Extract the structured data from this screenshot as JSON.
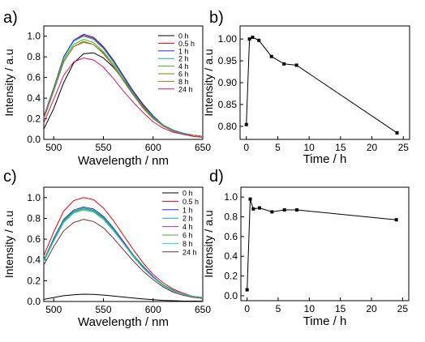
{
  "figure": {
    "panels": [
      {
        "label": "a)"
      },
      {
        "label": "b)"
      },
      {
        "label": "c)"
      },
      {
        "label": "d)"
      }
    ]
  },
  "chart_data": [
    {
      "panel": "a)",
      "type": "line",
      "xlabel": "Wavelength / nm",
      "ylabel": "Intensity / a.u",
      "xlim": [
        490,
        650
      ],
      "ylim": [
        0.0,
        1.1
      ],
      "xticks": [
        500,
        550,
        600,
        650
      ],
      "yticks": [
        0.0,
        0.2,
        0.4,
        0.6,
        0.8,
        1.0
      ],
      "legend_position": "top-right",
      "x": [
        490,
        500,
        510,
        520,
        530,
        540,
        550,
        560,
        570,
        580,
        590,
        600,
        610,
        620,
        630,
        640,
        650
      ],
      "series": [
        {
          "name": "0 h",
          "color": "#000000",
          "values": [
            0.1,
            0.3,
            0.55,
            0.74,
            0.83,
            0.84,
            0.79,
            0.7,
            0.58,
            0.45,
            0.33,
            0.22,
            0.14,
            0.09,
            0.06,
            0.04,
            0.03
          ]
        },
        {
          "name": "0.5 h",
          "color": "#e8000b",
          "values": [
            0.22,
            0.5,
            0.8,
            0.96,
            1.01,
            0.98,
            0.89,
            0.76,
            0.61,
            0.46,
            0.33,
            0.22,
            0.14,
            0.09,
            0.06,
            0.04,
            0.03
          ]
        },
        {
          "name": "1 h",
          "color": "#2c2ee8",
          "values": [
            0.22,
            0.5,
            0.8,
            0.96,
            1.02,
            0.99,
            0.9,
            0.77,
            0.62,
            0.47,
            0.34,
            0.23,
            0.14,
            0.09,
            0.06,
            0.04,
            0.03
          ]
        },
        {
          "name": "2 h",
          "color": "#1aa6a6",
          "values": [
            0.21,
            0.49,
            0.79,
            0.95,
            1.0,
            0.97,
            0.88,
            0.75,
            0.6,
            0.45,
            0.32,
            0.22,
            0.14,
            0.09,
            0.06,
            0.04,
            0.03
          ]
        },
        {
          "name": "4 h",
          "color": "#3cb031",
          "values": [
            0.21,
            0.48,
            0.77,
            0.92,
            0.97,
            0.94,
            0.85,
            0.73,
            0.58,
            0.44,
            0.31,
            0.21,
            0.13,
            0.08,
            0.05,
            0.04,
            0.03
          ]
        },
        {
          "name": "6 h",
          "color": "#808000",
          "values": [
            0.2,
            0.47,
            0.75,
            0.9,
            0.95,
            0.92,
            0.84,
            0.71,
            0.57,
            0.43,
            0.31,
            0.21,
            0.13,
            0.08,
            0.05,
            0.04,
            0.03
          ]
        },
        {
          "name": "8  h",
          "color": "#9a7530",
          "values": [
            0.2,
            0.47,
            0.75,
            0.9,
            0.94,
            0.92,
            0.83,
            0.71,
            0.57,
            0.43,
            0.3,
            0.2,
            0.13,
            0.08,
            0.05,
            0.04,
            0.03
          ]
        },
        {
          "name": "24 h",
          "color": "#d4126e",
          "values": [
            0.16,
            0.39,
            0.62,
            0.75,
            0.79,
            0.77,
            0.7,
            0.59,
            0.47,
            0.36,
            0.26,
            0.17,
            0.11,
            0.07,
            0.05,
            0.03,
            0.02
          ]
        }
      ]
    },
    {
      "panel": "b)",
      "type": "line",
      "xlabel": "Time / h",
      "ylabel": "Intensity / a.u",
      "xlim": [
        -1,
        26
      ],
      "ylim": [
        0.77,
        1.03
      ],
      "xticks": [
        0,
        5,
        10,
        15,
        20,
        25
      ],
      "yticks": [
        0.8,
        0.85,
        0.9,
        0.95,
        1.0
      ],
      "series": [
        {
          "color": "#000000",
          "x": [
            0,
            0.5,
            1,
            2,
            4,
            6,
            8,
            24
          ],
          "values": [
            0.804,
            1.0,
            1.004,
            0.997,
            0.96,
            0.943,
            0.94,
            0.785
          ]
        }
      ]
    },
    {
      "panel": "c)",
      "type": "line",
      "xlabel": "Wavelength / nm",
      "ylabel": "Intensity / a.u",
      "xlim": [
        490,
        650
      ],
      "ylim": [
        0.0,
        1.1
      ],
      "xticks": [
        500,
        550,
        600,
        650
      ],
      "yticks": [
        0.0,
        0.2,
        0.4,
        0.6,
        0.8,
        1.0
      ],
      "legend_position": "top-right",
      "x": [
        490,
        500,
        510,
        520,
        530,
        540,
        550,
        560,
        570,
        580,
        590,
        600,
        610,
        620,
        630,
        640,
        650
      ],
      "series": [
        {
          "name": "0 h",
          "color": "#000000",
          "values": [
            0.02,
            0.038,
            0.055,
            0.065,
            0.07,
            0.068,
            0.062,
            0.053,
            0.043,
            0.033,
            0.024,
            0.017,
            0.011,
            0.008,
            0.005,
            0.004,
            0.003
          ]
        },
        {
          "name": "0.5 h",
          "color": "#e8000b",
          "values": [
            0.44,
            0.67,
            0.87,
            0.97,
            1.0,
            0.98,
            0.9,
            0.78,
            0.64,
            0.5,
            0.37,
            0.26,
            0.18,
            0.12,
            0.08,
            0.05,
            0.04
          ]
        },
        {
          "name": "1 h",
          "color": "#2c2ee8",
          "values": [
            0.4,
            0.61,
            0.79,
            0.88,
            0.91,
            0.89,
            0.82,
            0.71,
            0.58,
            0.45,
            0.34,
            0.24,
            0.16,
            0.11,
            0.07,
            0.05,
            0.04
          ]
        },
        {
          "name": "2 h",
          "color": "#1aa6a6",
          "values": [
            0.4,
            0.6,
            0.78,
            0.87,
            0.9,
            0.88,
            0.81,
            0.7,
            0.57,
            0.45,
            0.33,
            0.23,
            0.16,
            0.11,
            0.07,
            0.05,
            0.04
          ]
        },
        {
          "name": "4 h",
          "color": "#a12db8",
          "values": [
            0.39,
            0.59,
            0.77,
            0.86,
            0.89,
            0.87,
            0.8,
            0.69,
            0.57,
            0.44,
            0.33,
            0.23,
            0.16,
            0.1,
            0.07,
            0.05,
            0.04
          ]
        },
        {
          "name": "6 h",
          "color": "#3cb031",
          "values": [
            0.39,
            0.59,
            0.77,
            0.86,
            0.89,
            0.87,
            0.8,
            0.69,
            0.56,
            0.44,
            0.33,
            0.23,
            0.16,
            0.1,
            0.07,
            0.05,
            0.04
          ]
        },
        {
          "name": "8 h",
          "color": "#2ad1c2",
          "values": [
            0.38,
            0.58,
            0.76,
            0.85,
            0.88,
            0.86,
            0.79,
            0.68,
            0.56,
            0.43,
            0.32,
            0.23,
            0.15,
            0.1,
            0.07,
            0.05,
            0.04
          ]
        },
        {
          "name": "24 h",
          "color": "#7a2f3a",
          "values": [
            0.35,
            0.53,
            0.68,
            0.76,
            0.79,
            0.77,
            0.71,
            0.61,
            0.5,
            0.39,
            0.29,
            0.21,
            0.14,
            0.09,
            0.06,
            0.04,
            0.03
          ]
        }
      ]
    },
    {
      "panel": "d)",
      "type": "line",
      "xlabel": "Time / h",
      "ylabel": "Intensity / a.u",
      "xlim": [
        -1,
        26
      ],
      "ylim": [
        -0.05,
        1.1
      ],
      "xticks": [
        0,
        5,
        10,
        15,
        20,
        25
      ],
      "yticks": [
        0.0,
        0.2,
        0.4,
        0.6,
        0.8,
        1.0
      ],
      "series": [
        {
          "color": "#000000",
          "x": [
            0,
            0.5,
            1,
            2,
            4,
            6,
            8,
            24
          ],
          "values": [
            0.06,
            0.98,
            0.88,
            0.89,
            0.85,
            0.87,
            0.87,
            0.77
          ]
        }
      ]
    }
  ]
}
